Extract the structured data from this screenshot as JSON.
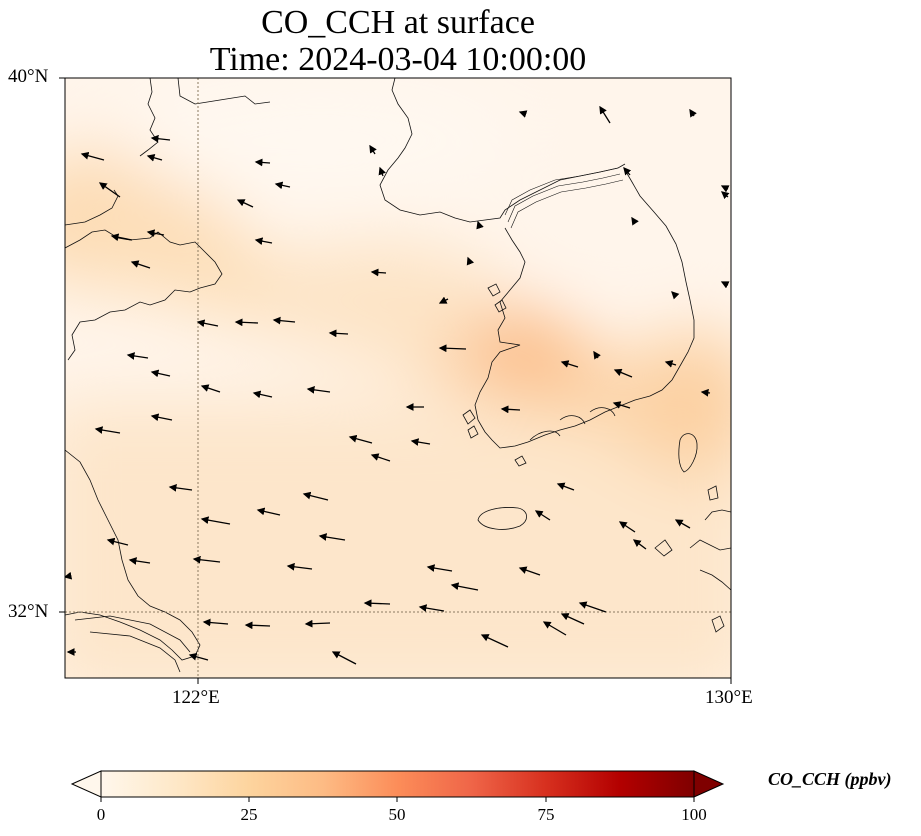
{
  "title": {
    "line1": "CO_CCH at surface",
    "line2": "Time: 2024-03-04 10:00:00"
  },
  "map": {
    "lat_labels": [
      "40°N",
      "32°N"
    ],
    "lon_labels": [
      "122°E",
      "130°E"
    ],
    "lat_range": [
      31,
      40
    ],
    "lon_range": [
      120,
      130
    ],
    "gridlines": {
      "lat": [
        32
      ],
      "lon": [
        122
      ]
    },
    "colors": {
      "land_line": "#000000",
      "grid": "#8a7a60",
      "background": "#fff5eb"
    },
    "plume_peak": {
      "value_ppbv": 35,
      "location": "western Korean coast"
    },
    "wind": {
      "dominant_direction": "westward",
      "representation": "arrows"
    }
  },
  "colorbar": {
    "label": "CO_CCH (ppbv)",
    "ticks": [
      "0",
      "25",
      "50",
      "75",
      "100"
    ],
    "min": 0,
    "max": 100,
    "extend": "both",
    "colormap": "OrRd",
    "colors": [
      "#fff7ec",
      "#fee8c8",
      "#fdd49e",
      "#fdbb84",
      "#fc8d59",
      "#ef6548",
      "#d7301f",
      "#b30000",
      "#7f0000"
    ]
  }
}
